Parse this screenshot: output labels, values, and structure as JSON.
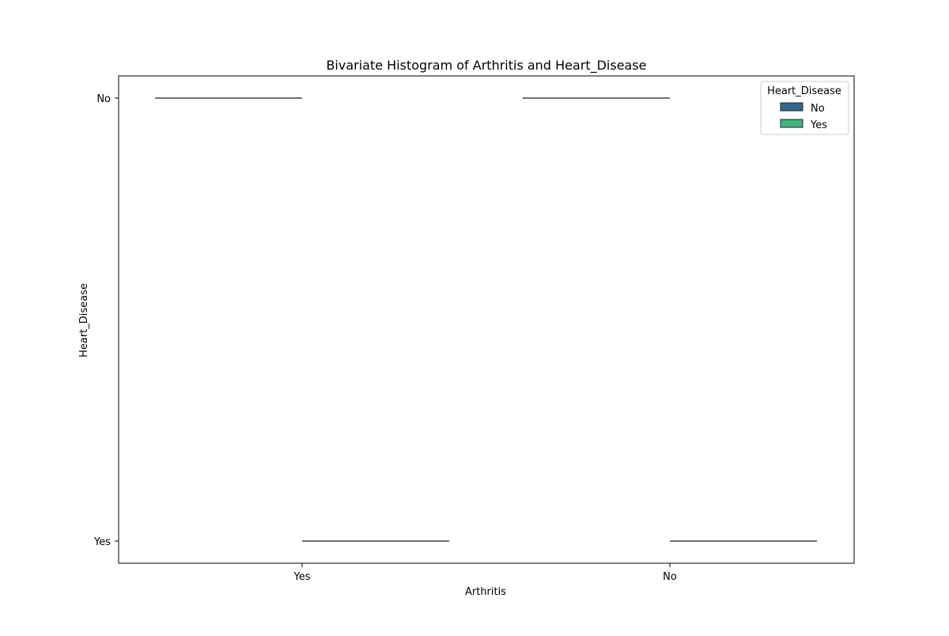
{
  "chart_data": {
    "type": "bar",
    "title": "Bivariate Histogram of Arthritis and Heart_Disease",
    "xlabel": "Arthritis",
    "ylabel": "Heart_Disease",
    "categories": [
      "Yes",
      "No"
    ],
    "y_categories": [
      "No",
      "Yes"
    ],
    "legend": {
      "title": "Heart_Disease",
      "placement": "top-right",
      "entries": [
        {
          "name": "No",
          "color": "#33668a"
        },
        {
          "name": "Yes",
          "color": "#3fb77a"
        }
      ]
    },
    "series": [
      {
        "name": "No",
        "color": "#33668a",
        "segments": [
          {
            "x": "Yes",
            "y": "No"
          },
          {
            "x": "No",
            "y": "No"
          }
        ]
      },
      {
        "name": "Yes",
        "color": "#3fb77a",
        "segments": [
          {
            "x": "Yes",
            "y": "Yes"
          },
          {
            "x": "No",
            "y": "Yes"
          }
        ]
      }
    ],
    "grid": false,
    "line_color": "#404040"
  }
}
